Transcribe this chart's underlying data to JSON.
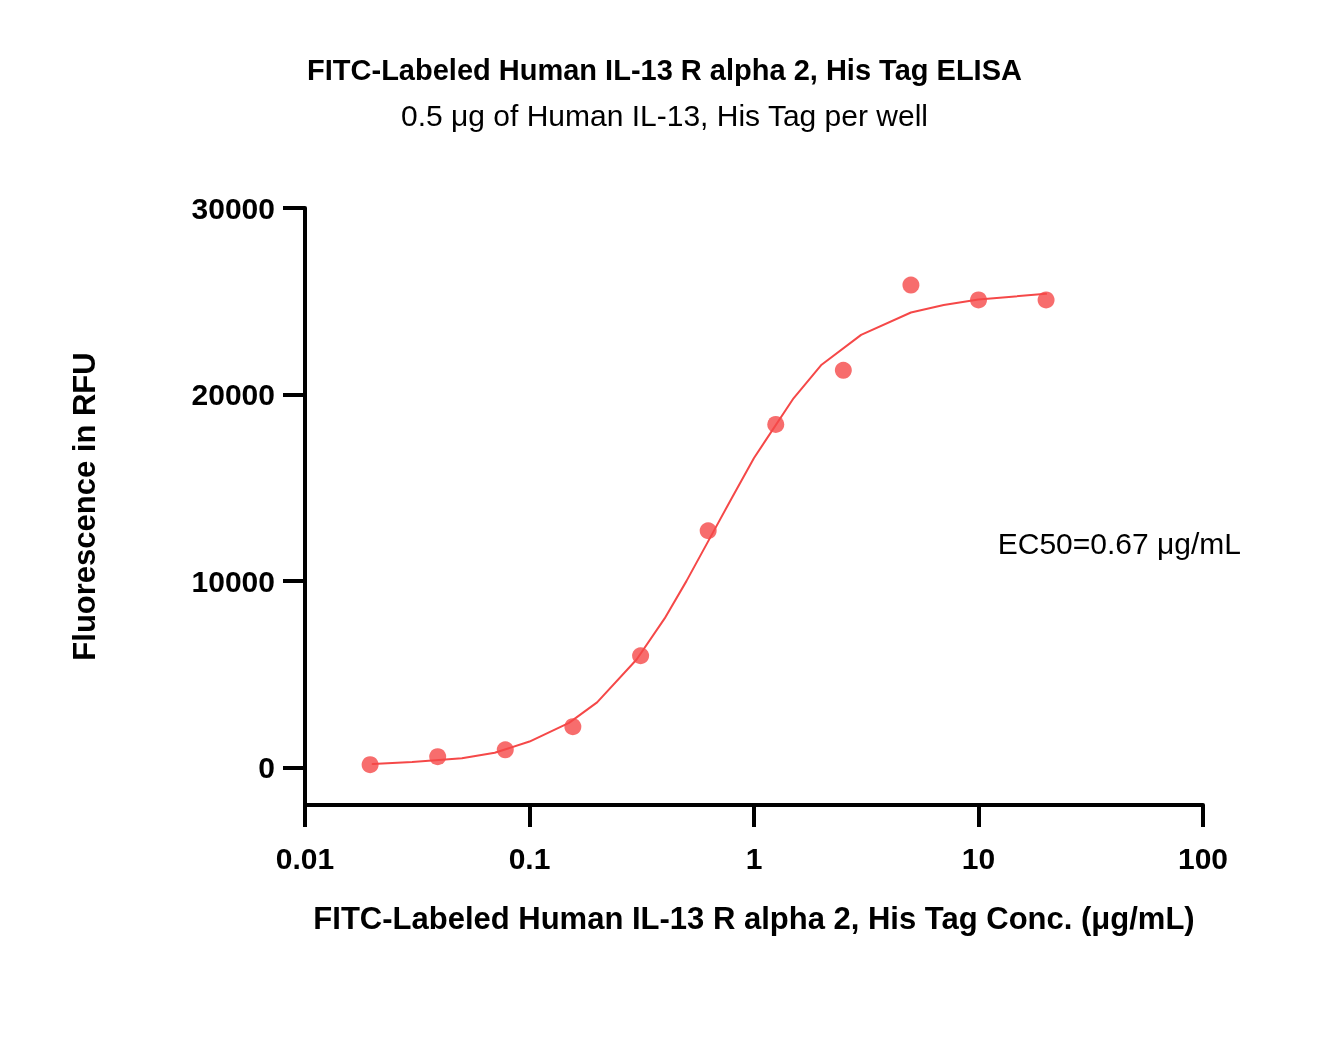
{
  "chart_data": {
    "type": "scatter",
    "title": "FITC-Labeled Human IL-13 R alpha 2, His Tag ELISA",
    "subtitle": "0.5 μg of Human IL-13, His Tag per well",
    "xlabel": "FITC-Labeled Human IL-13 R alpha 2, His Tag Conc. (μg/mL)",
    "ylabel": "Fluorescence in RFU",
    "annotations": [
      "EC50=0.67 μg/mL"
    ],
    "log": "x",
    "xlim": [
      0.01,
      100
    ],
    "xticks": [
      0.01,
      0.1,
      1,
      10,
      100
    ],
    "ylim": [
      -2000,
      30000
    ],
    "yticks": [
      0,
      10000,
      20000,
      30000
    ],
    "grid": false,
    "series": [
      {
        "marker": "circle",
        "color": "#f54848",
        "x": [
          0.0195,
          0.039,
          0.078,
          0.156,
          0.3125,
          0.625,
          1.25,
          2.5,
          5,
          10,
          20
        ],
        "values": [
          160,
          590,
          960,
          2200,
          6000,
          12700,
          18400,
          21300,
          25870,
          25070,
          25070
        ]
      },
      {
        "type": "line",
        "marker": "none",
        "line_style": "solid",
        "color": "#f54848",
        "x": [
          0.02,
          0.03,
          0.05,
          0.07,
          0.1,
          0.15,
          0.2,
          0.3,
          0.4,
          0.5,
          0.67,
          0.8,
          1,
          1.5,
          2,
          3,
          5,
          7,
          10,
          20
        ],
        "values": [
          200,
          300,
          500,
          800,
          1400,
          2400,
          3500,
          5800,
          8000,
          10000,
          12800,
          14500,
          16600,
          19800,
          21600,
          23200,
          24400,
          24800,
          25100,
          25400
        ]
      }
    ]
  }
}
